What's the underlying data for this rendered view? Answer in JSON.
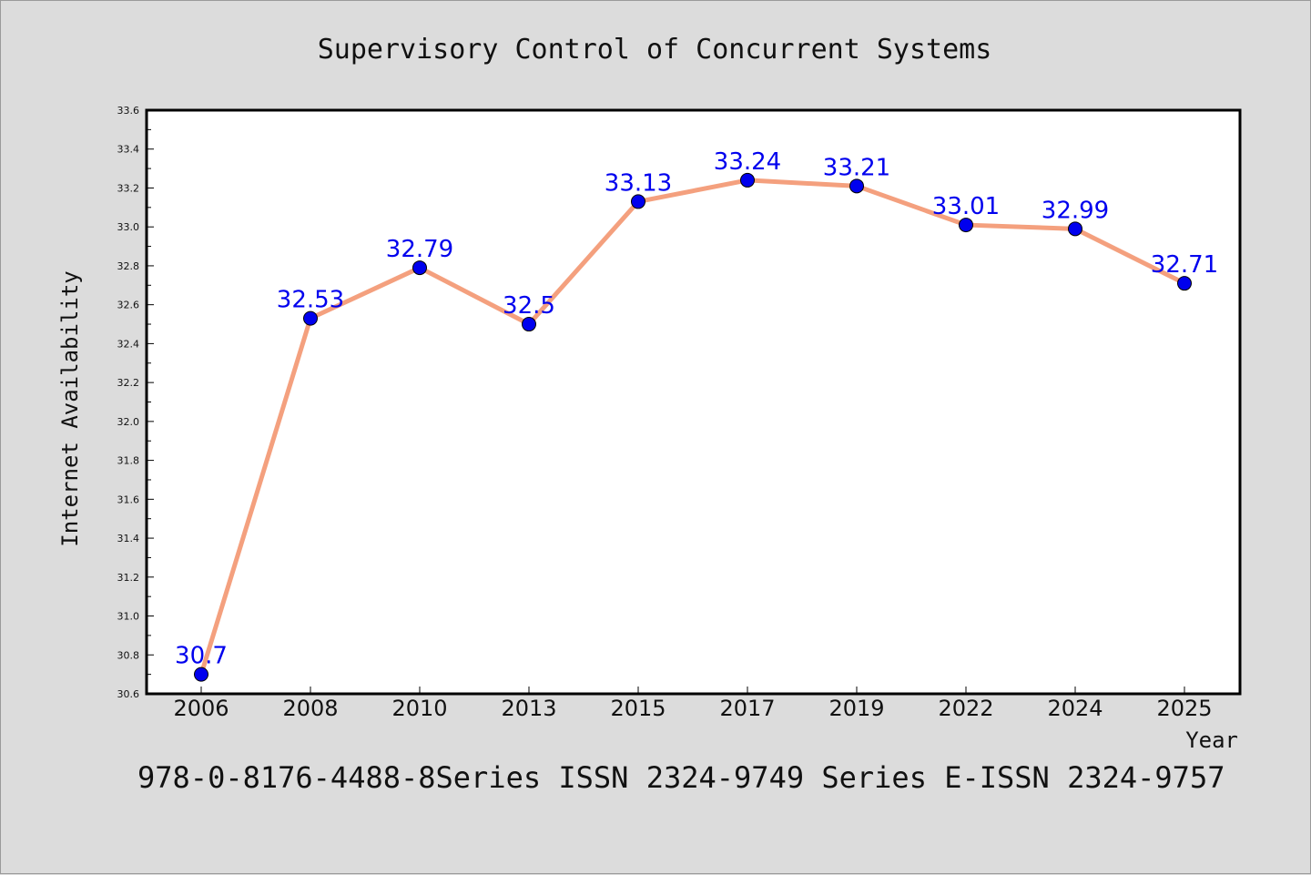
{
  "chart_data": {
    "type": "line",
    "title": "Supervisory Control of Concurrent Systems",
    "xlabel": "Year",
    "ylabel": "Internet Availability",
    "categories": [
      "2006",
      "2008",
      "2010",
      "2013",
      "2015",
      "2017",
      "2019",
      "2022",
      "2024",
      "2025"
    ],
    "series": [
      {
        "values": [
          30.7,
          32.53,
          32.79,
          32.5,
          33.13,
          33.24,
          33.21,
          33.01,
          32.99,
          32.71
        ],
        "labels": [
          "30.7",
          "32.53",
          "32.79",
          "32.5",
          "33.13",
          "33.24",
          "33.21",
          "33.01",
          "32.99",
          "32.71"
        ]
      }
    ],
    "ylim": [
      30.6,
      33.6
    ],
    "yticks": [
      "30.6",
      "30.8",
      "31.0",
      "31.2",
      "31.4",
      "31.6",
      "31.8",
      "32.0",
      "32.2",
      "32.4",
      "32.6",
      "32.8",
      "33.0",
      "33.2",
      "33.4",
      "33.6"
    ],
    "grid": false,
    "data_labels": true,
    "colors": {
      "line": "#f4a07e",
      "marker": "#0000ee",
      "label": "#0000ee",
      "background": "#dcdcdc",
      "plot_area": "#ffffff"
    }
  },
  "footer": "978-0-8176-4488-8Series ISSN 2324-9749 Series E-ISSN 2324-9757"
}
